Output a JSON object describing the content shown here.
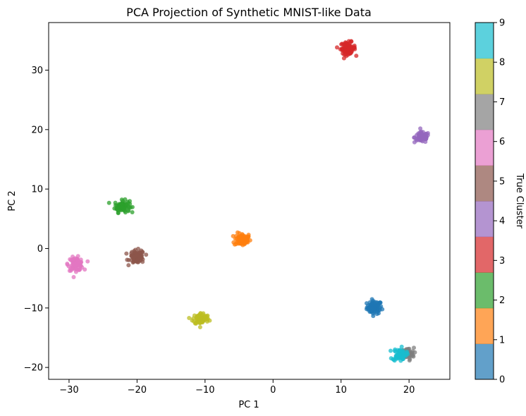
{
  "chart_data": {
    "type": "scatter",
    "title": "PCA Projection of Synthetic MNIST-like Data",
    "xlabel": "PC 1",
    "ylabel": "PC 2",
    "xlim": [
      -33,
      26
    ],
    "ylim": [
      -22,
      38
    ],
    "xticks": [
      -30,
      -20,
      -10,
      0,
      10,
      20
    ],
    "yticks": [
      -20,
      -10,
      0,
      10,
      20,
      30
    ],
    "grid": false,
    "colorbar": {
      "label": "True Cluster",
      "range": [
        0,
        9
      ],
      "ticks": [
        0,
        1,
        2,
        3,
        4,
        5,
        6,
        7,
        8,
        9
      ]
    },
    "series": [
      {
        "cluster": 0,
        "color": "#1f77b4",
        "center": [
          14.9,
          -9.9
        ],
        "spread": [
          0.55,
          0.55
        ],
        "points": 80
      },
      {
        "cluster": 1,
        "color": "#ff7f0e",
        "center": [
          -4.5,
          1.5
        ],
        "spread": [
          0.6,
          0.55
        ],
        "points": 80
      },
      {
        "cluster": 2,
        "color": "#2ca02c",
        "center": [
          -22.2,
          7.1
        ],
        "spread": [
          0.55,
          0.5
        ],
        "points": 80
      },
      {
        "cluster": 3,
        "color": "#d62728",
        "center": [
          11.0,
          33.7
        ],
        "spread": [
          0.55,
          0.5
        ],
        "points": 80
      },
      {
        "cluster": 4,
        "color": "#9467bd",
        "center": [
          21.9,
          18.7
        ],
        "spread": [
          0.55,
          0.45
        ],
        "points": 80
      },
      {
        "cluster": 5,
        "color": "#8c564b",
        "center": [
          -20.0,
          -1.4
        ],
        "spread": [
          0.55,
          0.55
        ],
        "points": 80
      },
      {
        "cluster": 6,
        "color": "#e377c2",
        "center": [
          -29.0,
          -2.6
        ],
        "spread": [
          0.55,
          0.55
        ],
        "points": 80
      },
      {
        "cluster": 7,
        "color": "#7f7f7f",
        "center": [
          19.8,
          -17.7
        ],
        "spread": [
          0.45,
          0.5
        ],
        "points": 60
      },
      {
        "cluster": 8,
        "color": "#bcbd22",
        "center": [
          -10.6,
          -11.8
        ],
        "spread": [
          0.6,
          0.5
        ],
        "points": 80
      },
      {
        "cluster": 9,
        "color": "#17becf",
        "center": [
          18.6,
          -17.8
        ],
        "spread": [
          0.5,
          0.55
        ],
        "points": 60
      }
    ]
  }
}
